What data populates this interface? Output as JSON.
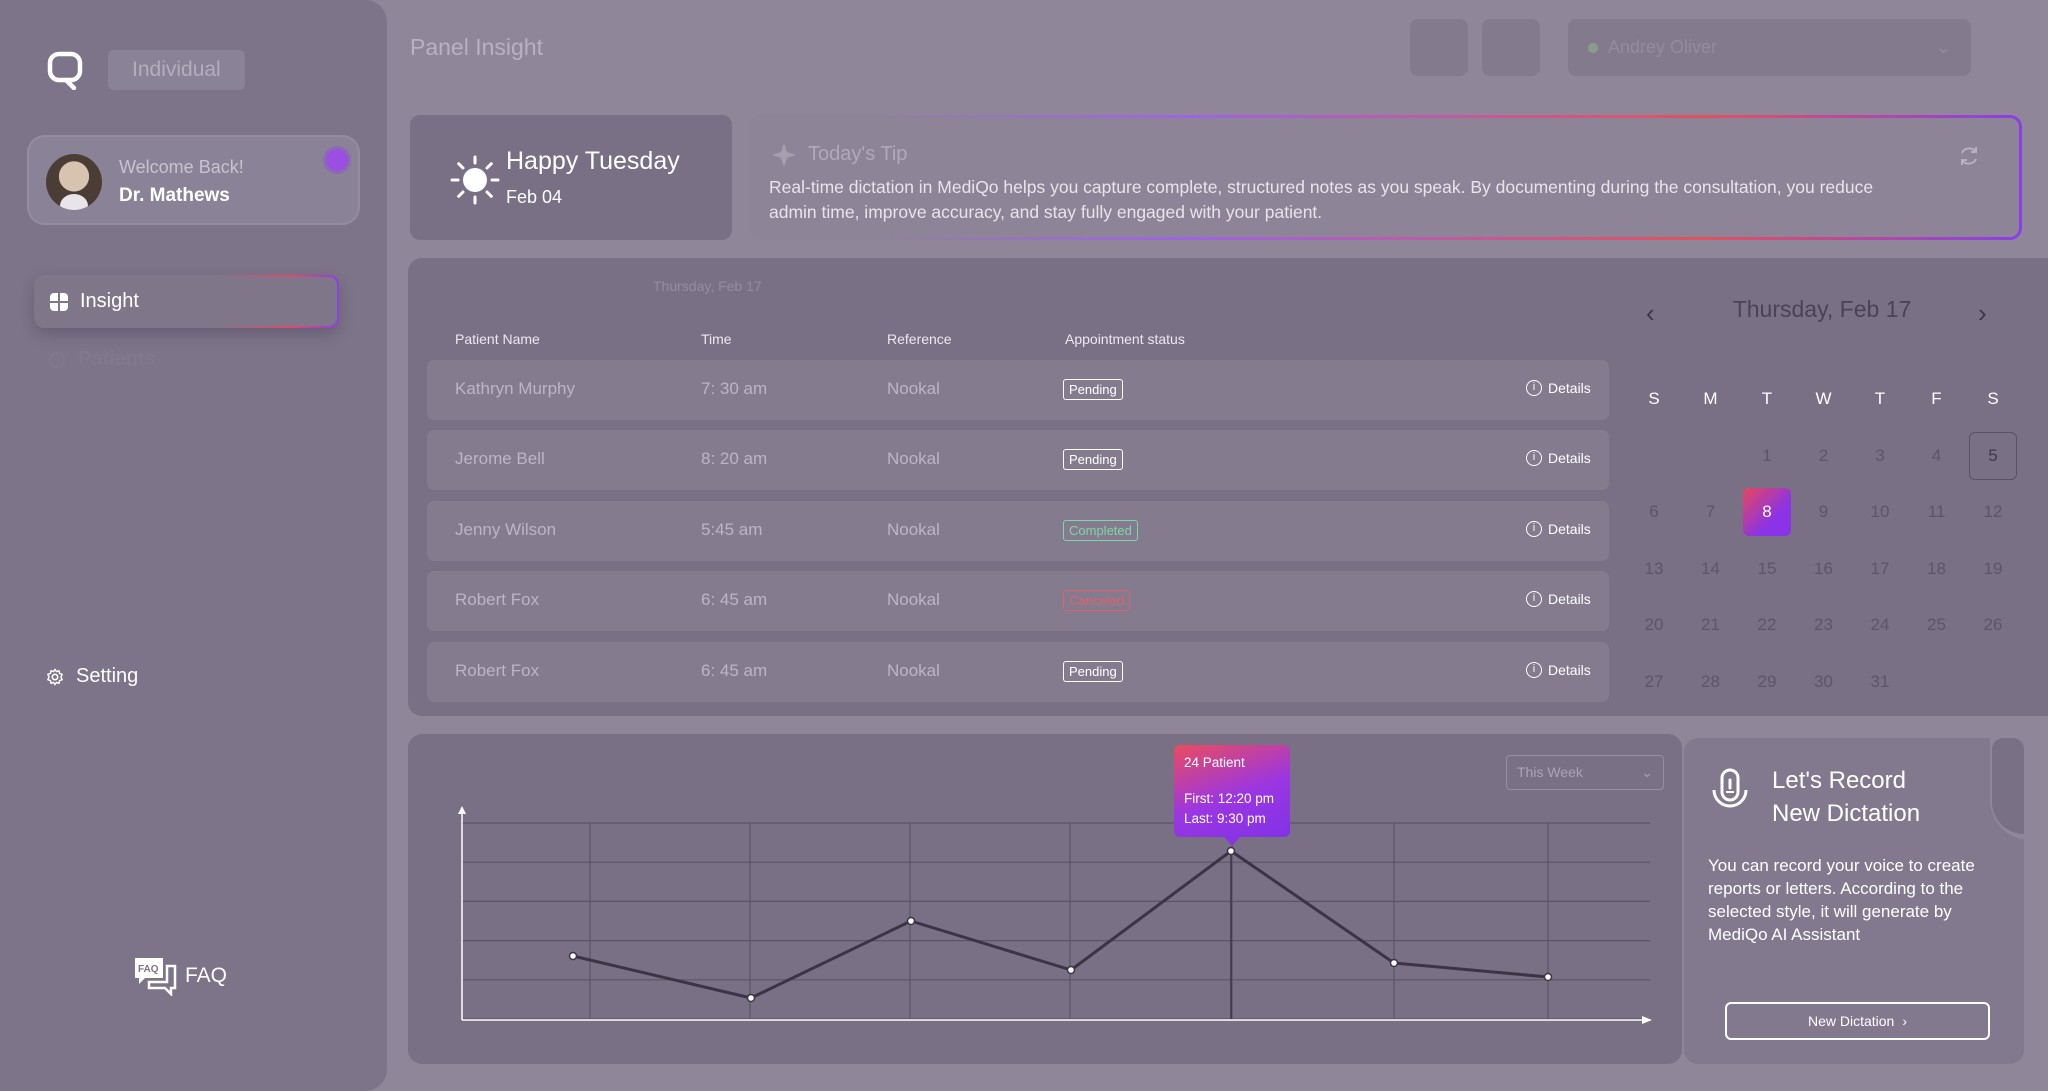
{
  "sidebar": {
    "plan": "Individual",
    "profile": {
      "welcome": "Welcome Back!",
      "name": "Dr. Mathews"
    },
    "nav": [
      {
        "label": "Insight",
        "icon": "dashboard-icon",
        "active": true
      },
      {
        "label": "Patients",
        "icon": "patients-icon"
      },
      {
        "label": "Setting",
        "icon": "gear-icon"
      }
    ],
    "faq_label": "FAQ",
    "faq_icon_text": "FAQ"
  },
  "header": {
    "title": "Panel Insight",
    "user_select": "Andrey Oliver"
  },
  "greeting": {
    "title": "Happy Tuesday",
    "date": "Feb 04"
  },
  "tip": {
    "title": "Today's Tip",
    "text": "Real-time dictation in MediQo helps you capture complete, structured notes as you speak. By documenting during the consultation, you reduce admin time, improve accuracy, and stay fully engaged with your patient."
  },
  "appointments": {
    "date": "Thursday, Feb 17",
    "columns": [
      "Patient Name",
      "Time",
      "Reference",
      "Appointment status"
    ],
    "details_label": "Details",
    "rows": [
      {
        "name": "Kathryn Murphy",
        "time": "7: 30 am",
        "ref": "Nookal",
        "status": "Pending"
      },
      {
        "name": "Jerome Bell",
        "time": "8: 20 am",
        "ref": "Nookal",
        "status": "Pending"
      },
      {
        "name": "Jenny Wilson",
        "time": "5:45 am",
        "ref": "Nookal",
        "status": "Completed"
      },
      {
        "name": "Robert Fox",
        "time": "6: 45 am",
        "ref": "Nookal",
        "status": "Canceled"
      },
      {
        "name": "Robert Fox",
        "time": "6: 45 am",
        "ref": "Nookal",
        "status": "Pending"
      }
    ]
  },
  "calendar": {
    "title": "Thursday, Feb 17",
    "weekdays": [
      "S",
      "M",
      "T",
      "W",
      "T",
      "F",
      "S"
    ],
    "first_weekday_offset": 2,
    "days_in_month": 31,
    "selected_day": 8,
    "boxed_day": 5
  },
  "chart": {
    "range_select": "This Week",
    "tooltip": {
      "count": "24 Patient",
      "first": "First:  12:20 pm",
      "last": "Last:  9:30 pm"
    }
  },
  "chart_data": {
    "type": "line",
    "title": "",
    "xlabel": "",
    "ylabel": "",
    "x": [
      1,
      2,
      3,
      4,
      5,
      6,
      7
    ],
    "series": [
      {
        "values": [
          9,
          3,
          14,
          7,
          24,
          8,
          6
        ]
      }
    ],
    "highlight_index": 4,
    "ylim": [
      0,
      28
    ],
    "grid": true
  },
  "dictation": {
    "title_line1": "Let's Record",
    "title_line2": "New Dictation",
    "text": "You can record your voice to create reports or letters. According to the selected style, it will generate by MediQo AI Assistant",
    "button": "New Dictation"
  }
}
